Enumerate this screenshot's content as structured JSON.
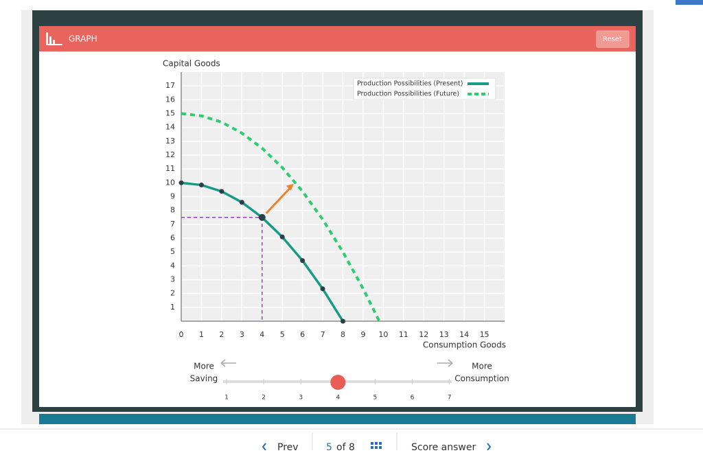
{
  "header": {
    "title": "GRAPH",
    "reset": "Reset"
  },
  "chart_data": {
    "type": "line",
    "ylabel": "Capital Goods",
    "xlabel": "Consumption Goods",
    "xlim": [
      0,
      16
    ],
    "ylim": [
      0,
      18
    ],
    "xticks": [
      0,
      1,
      2,
      3,
      4,
      5,
      6,
      7,
      8,
      9,
      10,
      11,
      12,
      13,
      14,
      15
    ],
    "yticks": [
      1,
      2,
      3,
      4,
      5,
      6,
      7,
      8,
      9,
      10,
      11,
      12,
      13,
      14,
      15,
      16,
      17
    ],
    "grid": true,
    "legend": "upper right",
    "series": [
      {
        "name": "Production Possibilities (Present)",
        "color": "#169c86",
        "style": "solid",
        "markers": true,
        "x": [
          0,
          1,
          2,
          3,
          4,
          5,
          6,
          7,
          8
        ],
        "values": [
          10,
          9.84,
          9.38,
          8.59,
          7.5,
          6.09,
          4.38,
          2.34,
          0
        ]
      },
      {
        "name": "Production Possibilities (Future)",
        "color": "#2ecc71",
        "style": "dashed",
        "markers": false,
        "x": [
          0,
          1,
          2,
          3,
          4,
          5,
          6,
          7,
          8,
          9,
          9.8
        ],
        "values": [
          15,
          14.84,
          14.38,
          13.59,
          12.5,
          11.1,
          9.38,
          7.35,
          5,
          2.35,
          0
        ]
      }
    ],
    "selected_index": 4
  },
  "slider": {
    "left_label": [
      "More",
      "Saving"
    ],
    "right_label": [
      "More",
      "Consumption"
    ],
    "ticks": [
      1,
      2,
      3,
      4,
      5,
      6,
      7
    ],
    "value": 4
  },
  "nav": {
    "prev": "Prev",
    "page": "5",
    "of": "of 8",
    "score": "Score answer"
  }
}
